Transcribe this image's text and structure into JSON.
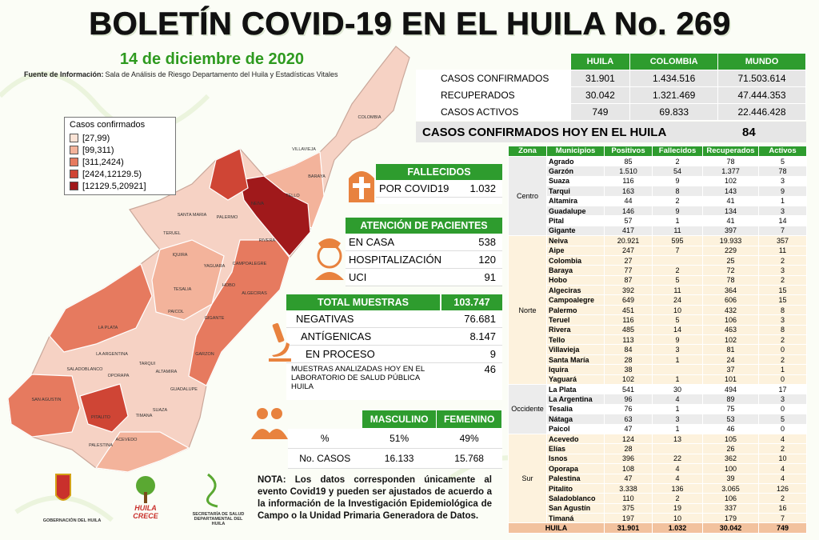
{
  "header": {
    "title": "BOLETÍN COVID-19 EN EL HUILA No. 269",
    "date": "14 de diciembre de 2020",
    "source_label": "Fuente de Información:",
    "source": "Sala de Análisis de Riesgo Departamento del Huila y Estadísticas Vitales"
  },
  "legend": {
    "title": "Casos confirmados",
    "items": [
      "[27,99)",
      "[99,311)",
      "[311,2424)",
      "[2424,12129.5)",
      "[12129.5,20921]"
    ],
    "colors": [
      "#fbe3d6",
      "#f3b39b",
      "#e67a5f",
      "#cf4535",
      "#a0191b"
    ]
  },
  "map": {
    "labels": [
      "COLOMBIA",
      "VILLAVIEJA",
      "BARAYA",
      "TELLO",
      "NEIVA",
      "SANTA MARIA",
      "PALERMO",
      "TERUEL",
      "RIVERA",
      "IQUIRA",
      "YAGUARA",
      "CAMPOALEGRE",
      "TESALIA",
      "HOBO",
      "ALGECIRAS",
      "PAICOL",
      "GIGANTE",
      "LA PLATA",
      "LA ARGENTINA",
      "TARQUI",
      "GARZON",
      "SALADOBLANCO",
      "OPORAPA",
      "ALTAMIRA",
      "GUADALUPE",
      "SAN AGUSTIN",
      "TIMANA",
      "PITALITO",
      "SUAZA",
      "ACEVEDO",
      "PALESTINA"
    ]
  },
  "summary": {
    "headers": [
      "HUILA",
      "COLOMBIA",
      "MUNDO"
    ],
    "rows": [
      [
        "CASOS CONFIRMADOS",
        "31.901",
        "1.434.516",
        "71.503.614"
      ],
      [
        "RECUPERADOS",
        "30.042",
        "1.321.469",
        "47.444.353"
      ],
      [
        "CASOS ACTIVOS",
        "749",
        "69.833",
        "22.446.428"
      ]
    ],
    "today_label": "CASOS CONFIRMADOS  HOY EN EL HUILA",
    "today_value": "84"
  },
  "deaths": {
    "title": "FALLECIDOS",
    "label": "POR COVID19",
    "value": "1.032"
  },
  "attention": {
    "title": "ATENCIÓN DE PACIENTES",
    "rows": [
      [
        "EN CASA",
        "538"
      ],
      [
        "HOSPITALIZACIÓN",
        "120"
      ],
      [
        "UCI",
        "91"
      ]
    ]
  },
  "samples": {
    "title": "TOTAL MUESTRAS",
    "total": "103.747",
    "rows": [
      [
        "NEGATIVAS",
        "76.681"
      ],
      [
        "ANTÍGENICAS",
        "8.147"
      ],
      [
        "EN PROCESO",
        "9"
      ],
      [
        "MUESTRAS ANALIZADAS HOY EN EL LABORATORIO DE SALUD PÚBLICA HUILA",
        "46"
      ]
    ]
  },
  "sex": {
    "headers": [
      "MASCULINO",
      "FEMENINO"
    ],
    "rows": [
      [
        "%",
        "51%",
        "49%"
      ],
      [
        "No. CASOS",
        "16.133",
        "15.768"
      ]
    ]
  },
  "note": "NOTA: Los datos corresponden únicamente al evento Covid19 y pueden ser ajustados de acuerdo a la información de la Investigación Epidemiológica de Campo o la Unidad Primaria Generadora de Datos.",
  "logos": [
    "GOBERNACIÓN DEL HUILA",
    "HUILA CRECE",
    "SECRETARÍA DE SALUD DEPARTAMENTAL DEL HUILA"
  ],
  "municipal": {
    "headers": [
      "Zona",
      "Municipios",
      "Positivos",
      "Fallecidos",
      "Recuperados",
      "Activos"
    ],
    "groups": [
      {
        "zone": "Centro",
        "rows": [
          [
            "Agrado",
            "85",
            "2",
            "78",
            "5"
          ],
          [
            "Garzón",
            "1.510",
            "54",
            "1.377",
            "78"
          ],
          [
            "Suaza",
            "116",
            "9",
            "102",
            "3"
          ],
          [
            "Tarqui",
            "163",
            "8",
            "143",
            "9"
          ],
          [
            "Altamira",
            "44",
            "2",
            "41",
            "1"
          ],
          [
            "Guadalupe",
            "146",
            "9",
            "134",
            "3"
          ],
          [
            "Pital",
            "57",
            "1",
            "41",
            "14"
          ],
          [
            "Gigante",
            "417",
            "11",
            "397",
            "7"
          ]
        ]
      },
      {
        "zone": "Norte",
        "rows": [
          [
            "Neiva",
            "20.921",
            "595",
            "19.933",
            "357"
          ],
          [
            "Aipe",
            "247",
            "7",
            "229",
            "11"
          ],
          [
            "Colombia",
            "27",
            null,
            "25",
            "2"
          ],
          [
            "Baraya",
            "77",
            "2",
            "72",
            "3"
          ],
          [
            "Hobo",
            "87",
            "5",
            "78",
            "2"
          ],
          [
            "Algeciras",
            "392",
            "11",
            "364",
            "15"
          ],
          [
            "Campoalegre",
            "649",
            "24",
            "606",
            "15"
          ],
          [
            "Palermo",
            "451",
            "10",
            "432",
            "8"
          ],
          [
            "Teruel",
            "116",
            "5",
            "106",
            "3"
          ],
          [
            "Rivera",
            "485",
            "14",
            "463",
            "8"
          ],
          [
            "Tello",
            "113",
            "9",
            "102",
            "2"
          ],
          [
            "Villavieja",
            "84",
            "3",
            "81",
            "0"
          ],
          [
            "Santa María",
            "28",
            "1",
            "24",
            "2"
          ],
          [
            "Iquira",
            "38",
            null,
            "37",
            "1"
          ],
          [
            "Yaguará",
            "102",
            "1",
            "101",
            "0"
          ]
        ]
      },
      {
        "zone": "Occidente",
        "rows": [
          [
            "La Plata",
            "541",
            "30",
            "494",
            "17"
          ],
          [
            "La Argentina",
            "96",
            "4",
            "89",
            "3"
          ],
          [
            "Tesalia",
            "76",
            "1",
            "75",
            "0"
          ],
          [
            "Nátaga",
            "63",
            "3",
            "53",
            "5"
          ],
          [
            "Paicol",
            "47",
            "1",
            "46",
            "0"
          ]
        ]
      },
      {
        "zone": "Sur",
        "rows": [
          [
            "Acevedo",
            "124",
            "13",
            "105",
            "4"
          ],
          [
            "Elías",
            "28",
            null,
            "26",
            "2"
          ],
          [
            "Isnos",
            "396",
            "22",
            "362",
            "10"
          ],
          [
            "Oporapa",
            "108",
            "4",
            "100",
            "4"
          ],
          [
            "Palestina",
            "47",
            "4",
            "39",
            "4"
          ],
          [
            "Pitalito",
            "3.338",
            "136",
            "3.065",
            "126"
          ],
          [
            "Saladoblanco",
            "110",
            "2",
            "106",
            "2"
          ],
          [
            "San Agustín",
            "375",
            "19",
            "337",
            "16"
          ],
          [
            "Timaná",
            "197",
            "10",
            "179",
            "7"
          ]
        ]
      }
    ],
    "total": [
      "HUILA",
      "31.901",
      "1.032",
      "30.042",
      "749"
    ]
  }
}
